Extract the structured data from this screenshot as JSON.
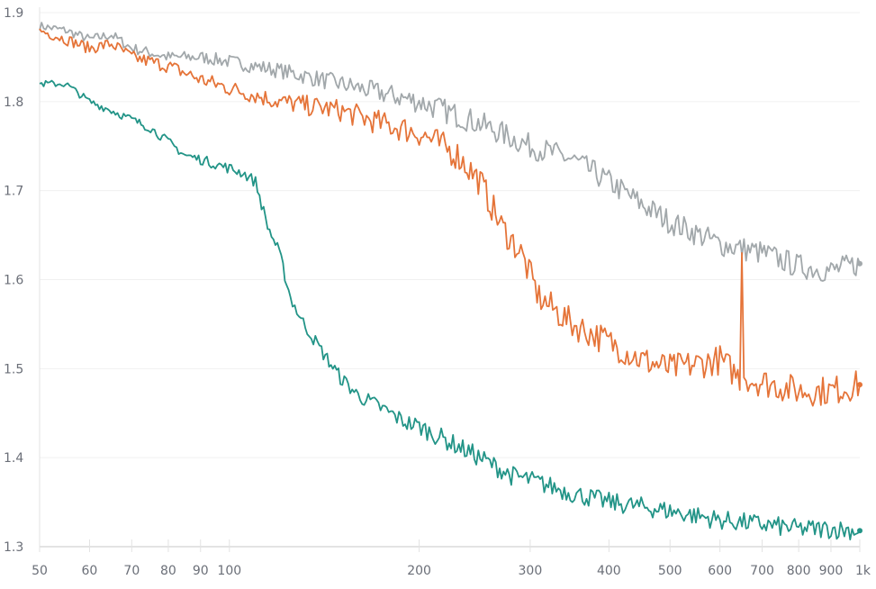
{
  "chart_data": {
    "type": "line",
    "title": "",
    "xlabel": "",
    "ylabel": "",
    "x_scale": "log",
    "xlim": [
      50,
      1000
    ],
    "ylim": [
      1.3,
      1.9
    ],
    "grid": true,
    "legend": "none",
    "x_ticks": [
      {
        "value": 50,
        "label": "50"
      },
      {
        "value": 60,
        "label": "60"
      },
      {
        "value": 70,
        "label": "70"
      },
      {
        "value": 80,
        "label": "80"
      },
      {
        "value": 90,
        "label": "90"
      },
      {
        "value": 100,
        "label": "100"
      },
      {
        "value": 200,
        "label": "200"
      },
      {
        "value": 300,
        "label": "300"
      },
      {
        "value": 400,
        "label": "400"
      },
      {
        "value": 500,
        "label": "500"
      },
      {
        "value": 600,
        "label": "600"
      },
      {
        "value": 700,
        "label": "700"
      },
      {
        "value": 800,
        "label": "800"
      },
      {
        "value": 900,
        "label": "900"
      },
      {
        "value": 1000,
        "label": "1k"
      }
    ],
    "y_ticks": [
      {
        "value": 1.3,
        "label": "1.3"
      },
      {
        "value": 1.4,
        "label": "1.4"
      },
      {
        "value": 1.5,
        "label": "1.5"
      },
      {
        "value": 1.6,
        "label": "1.6"
      },
      {
        "value": 1.7,
        "label": "1.7"
      },
      {
        "value": 1.8,
        "label": "1.8"
      },
      {
        "value": 1.9,
        "label": "1.9"
      }
    ],
    "series": [
      {
        "color": "#a2a8ab",
        "x": [
          50,
          55,
          60,
          65,
          70,
          80,
          90,
          100,
          120,
          150,
          200,
          250,
          300,
          350,
          400,
          450,
          500,
          600,
          700,
          800,
          900,
          1000
        ],
        "y": [
          1.885,
          1.88,
          1.87,
          1.875,
          1.86,
          1.85,
          1.85,
          1.845,
          1.835,
          1.82,
          1.8,
          1.775,
          1.75,
          1.735,
          1.71,
          1.685,
          1.665,
          1.64,
          1.63,
          1.615,
          1.61,
          1.618
        ]
      },
      {
        "color": "#e57439",
        "x": [
          50,
          55,
          60,
          65,
          70,
          80,
          90,
          100,
          120,
          150,
          175,
          200,
          230,
          250,
          270,
          290,
          310,
          350,
          400,
          450,
          500,
          550,
          600,
          645,
          650,
          655,
          700,
          800,
          900,
          1000
        ],
        "y": [
          1.88,
          1.87,
          1.86,
          1.865,
          1.85,
          1.84,
          1.825,
          1.815,
          1.8,
          1.79,
          1.775,
          1.765,
          1.74,
          1.71,
          1.66,
          1.63,
          1.58,
          1.55,
          1.53,
          1.51,
          1.5,
          1.505,
          1.51,
          1.49,
          1.63,
          1.49,
          1.485,
          1.475,
          1.475,
          1.482
        ]
      },
      {
        "color": "#229487",
        "x": [
          50,
          55,
          60,
          65,
          70,
          75,
          80,
          85,
          90,
          95,
          100,
          105,
          110,
          115,
          120,
          125,
          130,
          140,
          150,
          160,
          175,
          190,
          200,
          220,
          250,
          280,
          300,
          350,
          400,
          450,
          500,
          600,
          700,
          800,
          900,
          1000
        ],
        "y": [
          1.82,
          1.82,
          1.8,
          1.79,
          1.78,
          1.77,
          1.755,
          1.74,
          1.735,
          1.73,
          1.725,
          1.72,
          1.71,
          1.66,
          1.63,
          1.58,
          1.555,
          1.52,
          1.49,
          1.47,
          1.455,
          1.44,
          1.435,
          1.42,
          1.4,
          1.38,
          1.375,
          1.36,
          1.35,
          1.345,
          1.34,
          1.33,
          1.325,
          1.32,
          1.32,
          1.318
        ]
      }
    ]
  }
}
